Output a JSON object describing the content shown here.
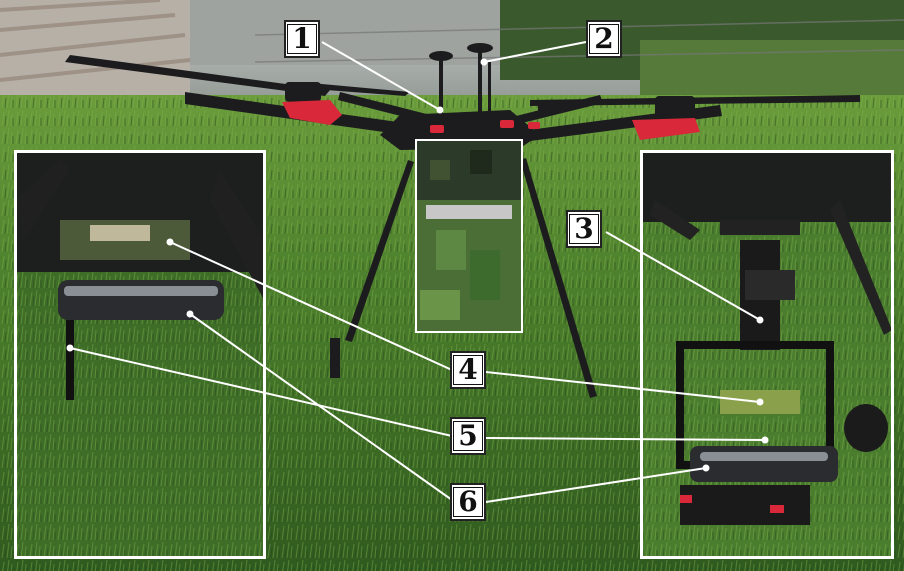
{
  "labels": [
    "1",
    "2",
    "3",
    "4",
    "5",
    "6"
  ],
  "colors": {
    "grass_dark": "#2f5a1f",
    "grass_light": "#5f8f3a",
    "drone_body": "#1c1c1e",
    "motor_red": "#d8283a",
    "callout_line": "#ffffff",
    "inset_border": "#ffffff"
  }
}
